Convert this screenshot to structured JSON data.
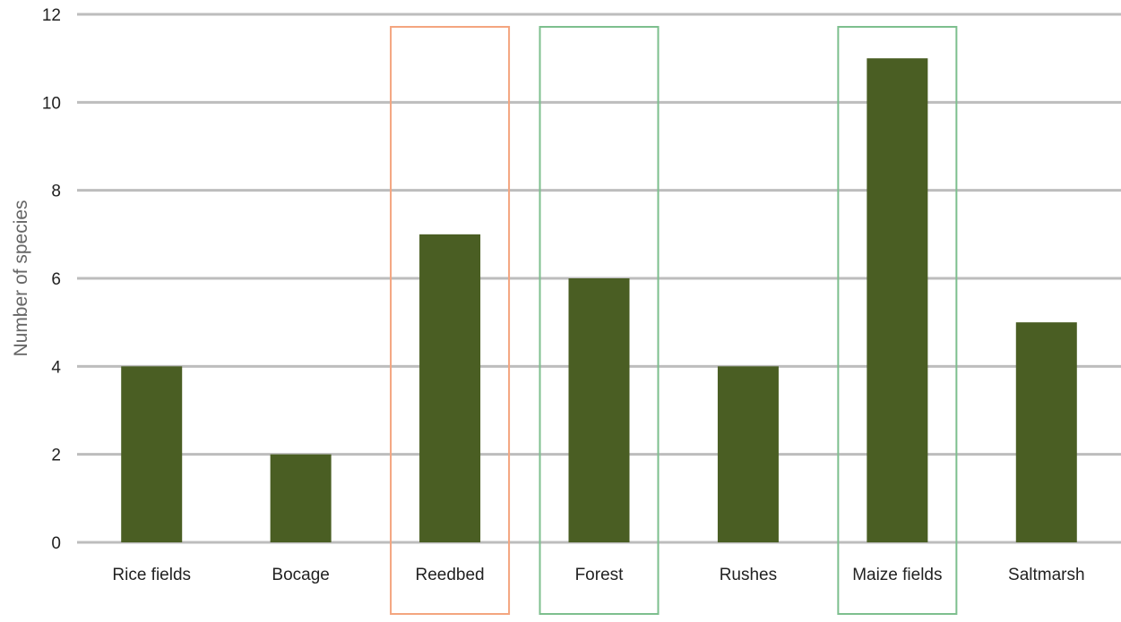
{
  "chart_data": {
    "type": "bar",
    "title": "",
    "xlabel": "",
    "ylabel": "Number of species",
    "categories": [
      "Rice fields",
      "Bocage",
      "Reedbed",
      "Forest",
      "Rushes",
      "Maize fields",
      "Saltmarsh"
    ],
    "values": [
      4,
      2,
      7,
      6,
      4,
      11,
      5
    ],
    "ylim": [
      0,
      12
    ],
    "yticks": [
      0,
      2,
      4,
      6,
      8,
      10,
      12
    ],
    "grid": true,
    "legend": "none",
    "colors": {
      "bar": "#4a5e23",
      "grid": "#bdbdbd",
      "axis_text": "#222222",
      "ylabel_text": "#666666"
    },
    "highlights": [
      {
        "category": "Reedbed",
        "color": "#f4a57f"
      },
      {
        "category": "Forest",
        "color": "#7dbf8e"
      },
      {
        "category": "Maize fields",
        "color": "#7dbf8e"
      }
    ]
  }
}
